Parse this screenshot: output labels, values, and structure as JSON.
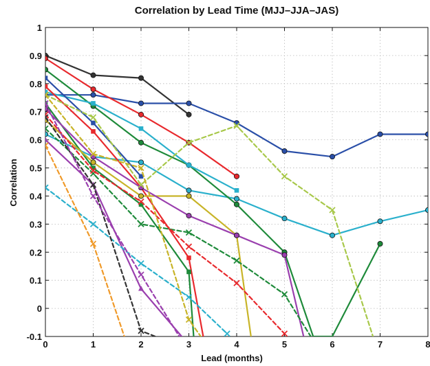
{
  "chart_data": {
    "type": "line",
    "title": "Correlation by Lead Time (MJJ–JJA–JAS)",
    "xlabel": "Lead (months)",
    "ylabel": "Correlation",
    "xlim": [
      0,
      8
    ],
    "ylim": [
      -0.1,
      1
    ],
    "xticks": [
      "0",
      "1",
      "2",
      "3",
      "4",
      "5",
      "6",
      "7",
      "8"
    ],
    "yticks": [
      "-0.1",
      "0",
      "0.1",
      "0.2",
      "0.3",
      "0.4",
      "0.5",
      "0.6",
      "0.7",
      "0.8",
      "0.9",
      "1"
    ],
    "grid": true,
    "series": [
      {
        "color": "#333333",
        "style": "solid",
        "marker": "circle",
        "x": [
          0,
          1,
          2,
          3
        ],
        "y": [
          0.9,
          0.83,
          0.82,
          0.69
        ]
      },
      {
        "color": "#2a4fa8",
        "style": "solid",
        "marker": "circle",
        "x": [
          0,
          1,
          2,
          3,
          4,
          5,
          6,
          7,
          8
        ],
        "y": [
          0.76,
          0.76,
          0.73,
          0.73,
          0.66,
          0.56,
          0.54,
          0.62,
          0.62
        ]
      },
      {
        "color": "#e8292d",
        "style": "solid",
        "marker": "circle",
        "x": [
          0,
          1,
          2,
          3,
          4
        ],
        "y": [
          0.89,
          0.78,
          0.69,
          0.59,
          0.47
        ]
      },
      {
        "color": "#2ab0cc",
        "style": "solid",
        "marker": "circle",
        "x": [
          0,
          1,
          2,
          3,
          4,
          5,
          6,
          7,
          8
        ],
        "y": [
          0.62,
          0.54,
          0.52,
          0.42,
          0.39,
          0.32,
          0.26,
          0.31,
          0.35
        ]
      },
      {
        "color": "#1e8a3a",
        "style": "solid",
        "marker": "circle",
        "x": [
          0,
          1,
          2,
          3,
          4,
          5,
          5.6,
          6,
          7
        ],
        "y": [
          0.85,
          0.72,
          0.59,
          0.51,
          0.37,
          0.2,
          -0.1,
          -0.1,
          0.23
        ]
      },
      {
        "color": "#2ab0cc",
        "style": "solid",
        "marker": "square",
        "x": [
          0,
          1,
          2,
          3,
          4
        ],
        "y": [
          0.77,
          0.73,
          0.64,
          0.51,
          0.42
        ]
      },
      {
        "color": "#2a4fa8",
        "style": "solid",
        "marker": "square",
        "x": [
          0,
          1,
          2
        ],
        "y": [
          0.82,
          0.66,
          0.47
        ]
      },
      {
        "color": "#e8292d",
        "style": "solid",
        "marker": "square",
        "x": [
          0,
          1,
          2,
          3,
          3.3
        ],
        "y": [
          0.79,
          0.63,
          0.43,
          0.18,
          -0.1
        ]
      },
      {
        "color": "#1e8a3a",
        "style": "solid",
        "marker": "square",
        "x": [
          0,
          1,
          2,
          3,
          3.1
        ],
        "y": [
          0.73,
          0.5,
          0.37,
          0.13,
          -0.1
        ]
      },
      {
        "color": "#c8b428",
        "style": "solid",
        "marker": "circle",
        "x": [
          0,
          1,
          2,
          3,
          4,
          4.3
        ],
        "y": [
          0.67,
          0.52,
          0.4,
          0.4,
          0.26,
          -0.1
        ]
      },
      {
        "color": "#9a3fae",
        "style": "solid",
        "marker": "circle",
        "x": [
          0,
          1,
          2,
          3,
          4,
          5,
          5.4
        ],
        "y": [
          0.71,
          0.54,
          0.43,
          0.33,
          0.26,
          0.19,
          -0.1
        ]
      },
      {
        "color": "#9a3fae",
        "style": "solid",
        "marker": "triangle",
        "x": [
          0,
          1,
          2,
          2.85
        ],
        "y": [
          0.6,
          0.44,
          0.07,
          -0.1
        ]
      },
      {
        "color": "#a8c84a",
        "style": "dashed",
        "marker": "x",
        "x": [
          0,
          1,
          2,
          3,
          4,
          5,
          6,
          6.85
        ],
        "y": [
          0.76,
          0.68,
          0.44,
          0.59,
          0.65,
          0.47,
          0.35,
          -0.1
        ]
      },
      {
        "color": "#1e8a3a",
        "style": "dashed",
        "marker": "x",
        "x": [
          0,
          1,
          2,
          3,
          4,
          5,
          5.55
        ],
        "y": [
          0.64,
          0.48,
          0.3,
          0.27,
          0.17,
          0.05,
          -0.1
        ]
      },
      {
        "color": "#e8292d",
        "style": "dashed",
        "marker": "x",
        "x": [
          0,
          1,
          2,
          3,
          4,
          5
        ],
        "y": [
          0.69,
          0.49,
          0.38,
          0.22,
          0.09,
          -0.09
        ]
      },
      {
        "color": "#2ab0cc",
        "style": "dashed",
        "marker": "x",
        "x": [
          0,
          1,
          2,
          3,
          3.8
        ],
        "y": [
          0.43,
          0.3,
          0.16,
          0.04,
          -0.09
        ]
      },
      {
        "color": "#c8b428",
        "style": "dashed",
        "marker": "x",
        "x": [
          0,
          1,
          2,
          3,
          3.25
        ],
        "y": [
          0.76,
          0.55,
          0.5,
          -0.04,
          -0.1
        ]
      },
      {
        "color": "#f09a2a",
        "style": "dashed",
        "marker": "x",
        "x": [
          0,
          1,
          1.65
        ],
        "y": [
          0.58,
          0.23,
          -0.1
        ]
      },
      {
        "color": "#333333",
        "style": "dashed",
        "marker": "x",
        "x": [
          0,
          1,
          2,
          2.3
        ],
        "y": [
          0.68,
          0.44,
          -0.08,
          -0.1
        ]
      },
      {
        "color": "#9a3fae",
        "style": "dashed",
        "marker": "x",
        "x": [
          0,
          1,
          2,
          2.8
        ],
        "y": [
          0.73,
          0.4,
          0.12,
          -0.1
        ]
      }
    ]
  }
}
